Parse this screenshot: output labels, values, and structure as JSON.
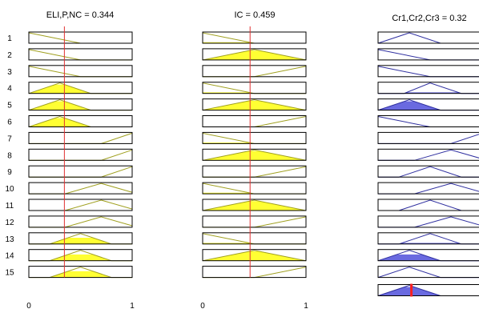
{
  "window": {
    "input_titles": [
      "ELI,P,NC = 0.344",
      "IC = 0.459"
    ],
    "output_title": "Cr1,Cr2,Cr3 = 0.32"
  },
  "colors": {
    "panel_border": "#000000",
    "mf_line_input": "#a0a020",
    "mf_fill_input": "#ffff33",
    "mf_line_output": "#3030a0",
    "mf_fill_output": "#6a6ae0",
    "marker_line": "#e03030",
    "output_marker": "#ff2020"
  },
  "rule_numbers": [
    "1",
    "2",
    "3",
    "4",
    "5",
    "6",
    "7",
    "8",
    "9",
    "10",
    "11",
    "12",
    "13",
    "14",
    "15"
  ],
  "inputs": [
    {
      "name": "ELI,P,NC",
      "value": 0.344,
      "range": [
        0,
        1
      ],
      "tick_labels": [
        "0",
        "1"
      ],
      "rules": [
        {
          "mf": [
            -0.5,
            0,
            0.5
          ],
          "fill": 0
        },
        {
          "mf": [
            -0.5,
            0,
            0.5
          ],
          "fill": 0
        },
        {
          "mf": [
            -0.5,
            0,
            0.5
          ],
          "fill": 0
        },
        {
          "mf": [
            0,
            0.3,
            0.6
          ],
          "fill": 0.85
        },
        {
          "mf": [
            0,
            0.3,
            0.6
          ],
          "fill": 0.85
        },
        {
          "mf": [
            0,
            0.3,
            0.6
          ],
          "fill": 0.85
        },
        {
          "mf": [
            0.7,
            1.0,
            1.3
          ],
          "fill": 0
        },
        {
          "mf": [
            0.7,
            1.0,
            1.3
          ],
          "fill": 0
        },
        {
          "mf": [
            0.7,
            1.0,
            1.3
          ],
          "fill": 0
        },
        {
          "mf": [
            0.35,
            0.7,
            1.05
          ],
          "fill": 0
        },
        {
          "mf": [
            0.35,
            0.7,
            1.05
          ],
          "fill": 0
        },
        {
          "mf": [
            0.35,
            0.7,
            1.05
          ],
          "fill": 0
        },
        {
          "mf": [
            0.2,
            0.5,
            0.8
          ],
          "fill": 0.6
        },
        {
          "mf": [
            0.2,
            0.5,
            0.8
          ],
          "fill": 0.6
        },
        {
          "mf": [
            0.2,
            0.5,
            0.8
          ],
          "fill": 0.6
        }
      ]
    },
    {
      "name": "IC",
      "value": 0.459,
      "range": [
        0,
        1
      ],
      "tick_labels": [
        "0",
        "1"
      ],
      "rules": [
        {
          "mf": [
            -0.5,
            0,
            0.5
          ],
          "fill": 0.1
        },
        {
          "mf": [
            0,
            0.5,
            1.0
          ],
          "fill": 0.9
        },
        {
          "mf": [
            0.5,
            1.0,
            1.5
          ],
          "fill": 0
        },
        {
          "mf": [
            -0.5,
            0,
            0.5
          ],
          "fill": 0.1
        },
        {
          "mf": [
            0,
            0.5,
            1.0
          ],
          "fill": 0.9
        },
        {
          "mf": [
            0.5,
            1.0,
            1.5
          ],
          "fill": 0
        },
        {
          "mf": [
            -0.5,
            0,
            0.5
          ],
          "fill": 0.1
        },
        {
          "mf": [
            0,
            0.5,
            1.0
          ],
          "fill": 0.9
        },
        {
          "mf": [
            0.5,
            1.0,
            1.5
          ],
          "fill": 0
        },
        {
          "mf": [
            -0.5,
            0,
            0.5
          ],
          "fill": 0.1
        },
        {
          "mf": [
            0,
            0.5,
            1.0
          ],
          "fill": 0.9
        },
        {
          "mf": [
            0.5,
            1.0,
            1.5
          ],
          "fill": 0
        },
        {
          "mf": [
            -0.5,
            0,
            0.5
          ],
          "fill": 0.1
        },
        {
          "mf": [
            0,
            0.5,
            1.0
          ],
          "fill": 0.9
        },
        {
          "mf": [
            0.5,
            1.0,
            1.5
          ],
          "fill": 0
        }
      ]
    }
  ],
  "output": {
    "name": "Cr1,Cr2,Cr3",
    "value": 0.32,
    "range": [
      0,
      1
    ],
    "rules": [
      {
        "mf": [
          0,
          0.3,
          0.6
        ],
        "fill": 0
      },
      {
        "mf": [
          -0.5,
          0,
          0.5
        ],
        "fill": 0
      },
      {
        "mf": [
          -0.5,
          0,
          0.5
        ],
        "fill": 0
      },
      {
        "mf": [
          0.25,
          0.5,
          0.8
        ],
        "fill": 0.1
      },
      {
        "mf": [
          0,
          0.3,
          0.6
        ],
        "fill": 0.85
      },
      {
        "mf": [
          -0.5,
          0,
          0.5
        ],
        "fill": 0
      },
      {
        "mf": [
          0.7,
          1.0,
          1.3
        ],
        "fill": 0
      },
      {
        "mf": [
          0.35,
          0.7,
          1.05
        ],
        "fill": 0
      },
      {
        "mf": [
          0.2,
          0.5,
          0.8
        ],
        "fill": 0
      },
      {
        "mf": [
          0.35,
          0.7,
          1.05
        ],
        "fill": 0
      },
      {
        "mf": [
          0.2,
          0.5,
          0.8
        ],
        "fill": 0
      },
      {
        "mf": [
          0.35,
          0.7,
          1.05
        ],
        "fill": 0
      },
      {
        "mf": [
          0.2,
          0.5,
          0.8
        ],
        "fill": 0.1
      },
      {
        "mf": [
          0,
          0.3,
          0.6
        ],
        "fill": 0.6
      },
      {
        "mf": [
          0,
          0.3,
          0.6
        ],
        "fill": 0
      }
    ],
    "aggregate": {
      "mf": [
        0,
        0.3,
        0.6
      ],
      "fill": 0.85
    }
  }
}
